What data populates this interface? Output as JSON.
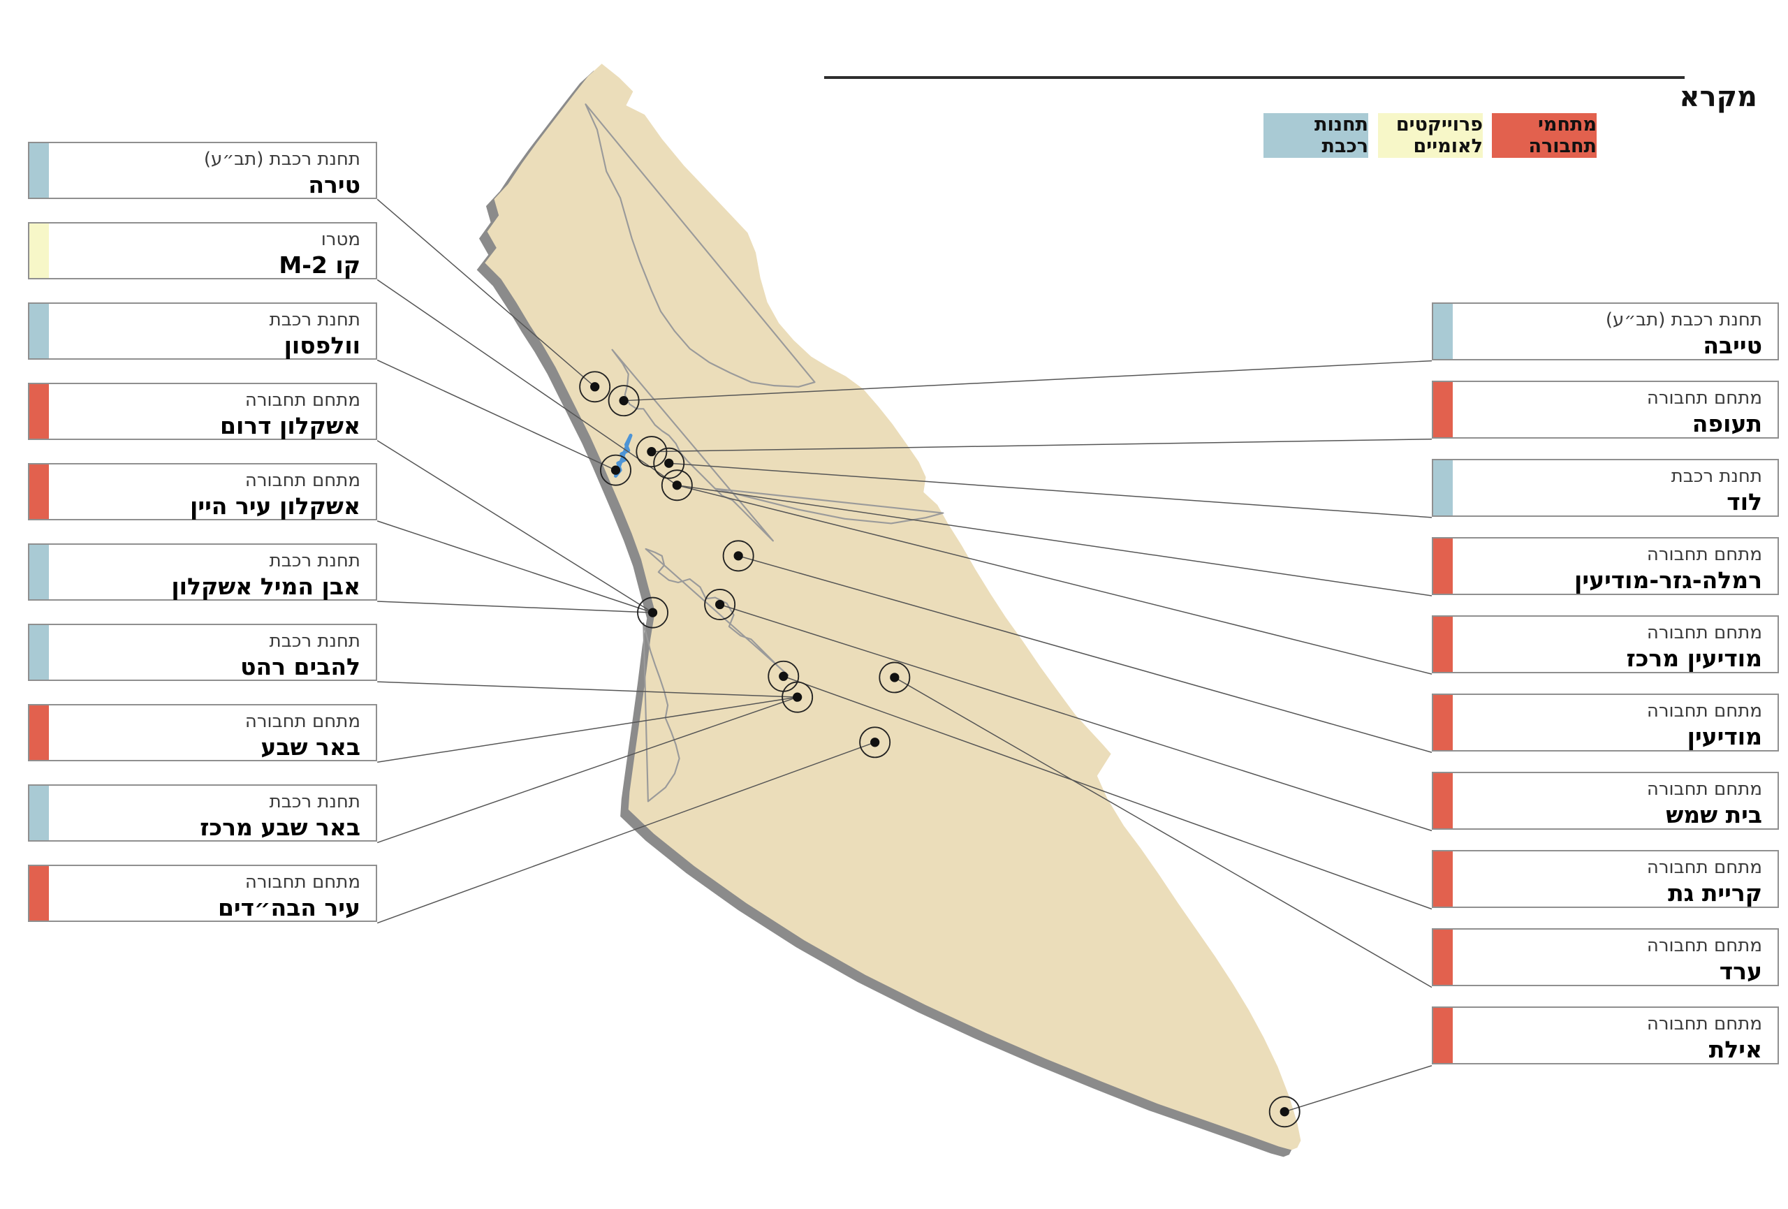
{
  "legend": {
    "title": "מקרא",
    "items": [
      {
        "id": "hub",
        "label": "מתחמי תחבורה",
        "color": "#E2614E"
      },
      {
        "id": "national_project",
        "label": "פרוייקטים לאומיים",
        "color": "#F7F7C8"
      },
      {
        "id": "train_station",
        "label": "תחנות רכבת",
        "color": "#A9CAD4"
      }
    ]
  },
  "colors": {
    "hub": "#E2614E",
    "national_project": "#F7F7C8",
    "train_station": "#A9CAD4",
    "land": "#EBDDBA",
    "shadow": "#8B8B8B",
    "boundary": "#9A9A9A",
    "connector": "#555555",
    "river": "#4D94D6"
  },
  "labels": {
    "left": [
      {
        "type": "תחנת רכבת (תב״ע)",
        "name": "טירה",
        "category": "train_station"
      },
      {
        "type": "מטרו",
        "name": "קו M-2",
        "category": "national_project"
      },
      {
        "type": "תחנת רכבת",
        "name": "וולפסון",
        "category": "train_station"
      },
      {
        "type": "מתחם תחבורה",
        "name": "אשקלון דרום",
        "category": "hub"
      },
      {
        "type": "מתחם תחבורה",
        "name": "אשקלון עיר היין",
        "category": "hub"
      },
      {
        "type": "תחנת רכבת",
        "name": "אבן המיל אשקלון",
        "category": "train_station"
      },
      {
        "type": "תחנת רכבת",
        "name": "להבים רהט",
        "category": "train_station"
      },
      {
        "type": "מתחם תחבורה",
        "name": "באר שבע",
        "category": "hub"
      },
      {
        "type": "תחנת רכבת",
        "name": "באר שבע מרכז",
        "category": "train_station"
      },
      {
        "type": "מתחם תחבורה",
        "name": "עיר הבה״דים",
        "category": "hub"
      }
    ],
    "right": [
      {
        "type": "תחנת רכבת (תב״ע)",
        "name": "טייבה",
        "category": "train_station"
      },
      {
        "type": "מתחם תחבורה",
        "name": "תעופה",
        "category": "hub"
      },
      {
        "type": "תחנת רכבת",
        "name": "לוד",
        "category": "train_station"
      },
      {
        "type": "מתחם תחבורה",
        "name": "רמלה-גזר-מודיעין",
        "category": "hub"
      },
      {
        "type": "מתחם תחבורה",
        "name": "מודיעין מרכז",
        "category": "hub"
      },
      {
        "type": "מתחם תחבורה",
        "name": "מודיעין",
        "category": "hub"
      },
      {
        "type": "מתחם תחבורה",
        "name": "בית שמש",
        "category": "hub"
      },
      {
        "type": "מתחם תחבורה",
        "name": "קריית גת",
        "category": "hub"
      },
      {
        "type": "מתחם תחבורה",
        "name": "ערד",
        "category": "hub"
      },
      {
        "type": "מתחם תחבורה",
        "name": "אילת",
        "category": "hub"
      }
    ]
  }
}
